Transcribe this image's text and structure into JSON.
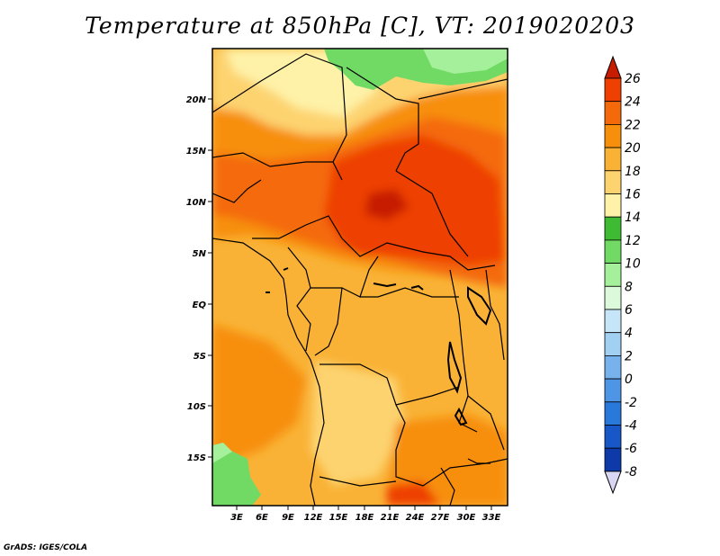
{
  "title": "Temperature at 850hPa [C], VT: 2019020203",
  "credit": "GrADS: IGES/COLA",
  "lat_labels": [
    "20N",
    "15N",
    "10N",
    "5N",
    "EQ",
    "5S",
    "10S",
    "15S"
  ],
  "lon_labels": [
    "3E",
    "6E",
    "9E",
    "12E",
    "15E",
    "18E",
    "21E",
    "24E",
    "27E",
    "30E",
    "33E"
  ],
  "colorbar": {
    "labels": [
      "26",
      "24",
      "22",
      "20",
      "18",
      "16",
      "14",
      "12",
      "10",
      "8",
      "6",
      "4",
      "2",
      "0",
      "-2",
      "-4",
      "-6",
      "-8"
    ],
    "colors": [
      "#c61d00",
      "#ee4000",
      "#f46a0b",
      "#f78f0c",
      "#f9b236",
      "#fdd36f",
      "#fef2a8",
      "#3ebb33",
      "#71da65",
      "#a5f09a",
      "#dcf9db",
      "#c6e5f8",
      "#a2d0f3",
      "#77b2ed",
      "#4f95e5",
      "#2979db",
      "#1857c8",
      "#0d3aa8",
      "#072283",
      "#02106a"
    ]
  },
  "legend_scale": {
    "palette_note": "",
    "high_color": "#c61d00"
  },
  "chart_data": {
    "type": "heatmap",
    "title": "Temperature at 850hPa [C], VT: 2019020203",
    "x_ticks": [
      "3E",
      "6E",
      "9E",
      "12E",
      "15E",
      "18E",
      "21E",
      "24E",
      "27E",
      "30E",
      "33E"
    ],
    "y_ticks": [
      "20N",
      "15N",
      "10N",
      "5N",
      "EQ",
      "5S",
      "10S",
      "15S"
    ],
    "value_levels": [
      26,
      24,
      22,
      20,
      18,
      16,
      14,
      12,
      10,
      8,
      6,
      4,
      2,
      0,
      -2,
      -4,
      -6,
      -8
    ],
    "xlim": [
      0,
      35
    ],
    "ylim": [
      -20,
      25
    ]
  }
}
